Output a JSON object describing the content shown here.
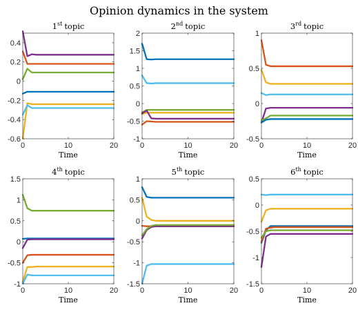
{
  "figure_title": "Opinion dynamics in the system",
  "chart_data": [
    {
      "type": "line",
      "title": "1",
      "title_sup": "st",
      "title_suffix": "topic",
      "xlabel": "Time",
      "ylabel": "",
      "xlim": [
        0,
        20
      ],
      "ylim": [
        -0.6,
        0.5
      ],
      "xticks": [
        "0",
        "10",
        "20"
      ],
      "yticks": [
        "0.4",
        "0.2",
        "0",
        "-0.2",
        "-0.4",
        "-0.6"
      ],
      "x": [
        0,
        1,
        2,
        3,
        20
      ],
      "series": [
        {
          "color": "#7E2F8E",
          "values": [
            0.52,
            0.26,
            0.28,
            0.275,
            0.275
          ]
        },
        {
          "color": "#D95319",
          "values": [
            0.31,
            0.18,
            0.18,
            0.18,
            0.18
          ]
        },
        {
          "color": "#77AC30",
          "values": [
            0.02,
            0.13,
            0.09,
            0.09,
            0.09
          ]
        },
        {
          "color": "#0072BD",
          "values": [
            -0.13,
            -0.11,
            -0.11,
            -0.11,
            -0.11
          ]
        },
        {
          "color": "#EDB120",
          "values": [
            -0.6,
            -0.23,
            -0.24,
            -0.24,
            -0.24
          ]
        },
        {
          "color": "#4DBEEE",
          "values": [
            -0.35,
            -0.25,
            -0.28,
            -0.28,
            -0.28
          ]
        }
      ]
    },
    {
      "type": "line",
      "title": "2",
      "title_sup": "nd",
      "title_suffix": "topic",
      "xlabel": "Time",
      "ylabel": "",
      "xlim": [
        0,
        20
      ],
      "ylim": [
        -1,
        2
      ],
      "xticks": [
        "0",
        "10",
        "20"
      ],
      "yticks": [
        "2",
        "1.5",
        "1",
        "0.5",
        "0",
        "-0.5",
        "-1"
      ],
      "x": [
        0,
        1,
        2,
        3,
        20
      ],
      "series": [
        {
          "color": "#0072BD",
          "values": [
            1.7,
            1.26,
            1.25,
            1.26,
            1.26
          ]
        },
        {
          "color": "#4DBEEE",
          "values": [
            0.8,
            0.58,
            0.57,
            0.58,
            0.58
          ]
        },
        {
          "color": "#77AC30",
          "values": [
            -0.25,
            -0.18,
            -0.18,
            -0.18,
            -0.18
          ]
        },
        {
          "color": "#EDB120",
          "values": [
            -0.3,
            -0.26,
            -0.26,
            -0.26,
            -0.26
          ]
        },
        {
          "color": "#7E2F8E",
          "values": [
            -0.28,
            -0.2,
            -0.42,
            -0.43,
            -0.43
          ]
        },
        {
          "color": "#D95319",
          "values": [
            -0.6,
            -0.5,
            -0.51,
            -0.52,
            -0.52
          ]
        }
      ]
    },
    {
      "type": "line",
      "title": "3",
      "title_sup": "rd",
      "title_suffix": "topic",
      "xlabel": "Time",
      "ylabel": "",
      "xlim": [
        0,
        20
      ],
      "ylim": [
        -0.5,
        1
      ],
      "xticks": [
        "0",
        "10",
        "20"
      ],
      "yticks": [
        "1",
        "0.5",
        "0",
        "-0.5"
      ],
      "x": [
        0,
        1,
        2,
        3,
        20
      ],
      "series": [
        {
          "color": "#D95319",
          "values": [
            0.9,
            0.55,
            0.53,
            0.53,
            0.53
          ]
        },
        {
          "color": "#EDB120",
          "values": [
            0.48,
            0.3,
            0.28,
            0.28,
            0.28
          ]
        },
        {
          "color": "#4DBEEE",
          "values": [
            0.15,
            0.12,
            0.13,
            0.13,
            0.13
          ]
        },
        {
          "color": "#7E2F8E",
          "values": [
            -0.27,
            -0.07,
            -0.06,
            -0.06,
            -0.06
          ]
        },
        {
          "color": "#77AC30",
          "values": [
            -0.24,
            -0.21,
            -0.17,
            -0.17,
            -0.17
          ]
        },
        {
          "color": "#0072BD",
          "values": [
            -0.27,
            -0.23,
            -0.22,
            -0.22,
            -0.22
          ]
        }
      ]
    },
    {
      "type": "line",
      "title": "4",
      "title_sup": "th",
      "title_suffix": "topic",
      "xlabel": "Time",
      "ylabel": "",
      "xlim": [
        0,
        20
      ],
      "ylim": [
        -1,
        1.5
      ],
      "xticks": [
        "0",
        "10",
        "20"
      ],
      "yticks": [
        "1.5",
        "1",
        "0.5",
        "0",
        "-0.5",
        "-1"
      ],
      "x": [
        0,
        1,
        2,
        3,
        20
      ],
      "series": [
        {
          "color": "#77AC30",
          "values": [
            1.12,
            0.8,
            0.74,
            0.74,
            0.74
          ]
        },
        {
          "color": "#0072BD",
          "values": [
            0.07,
            0.08,
            0.08,
            0.08,
            0.08
          ]
        },
        {
          "color": "#7E2F8E",
          "values": [
            -0.15,
            0.05,
            0.06,
            0.06,
            0.06
          ]
        },
        {
          "color": "#D95319",
          "values": [
            -0.5,
            -0.32,
            -0.31,
            -0.31,
            -0.31
          ]
        },
        {
          "color": "#EDB120",
          "values": [
            -0.95,
            -0.6,
            -0.6,
            -0.59,
            -0.59
          ]
        },
        {
          "color": "#4DBEEE",
          "values": [
            -1.0,
            -0.78,
            -0.8,
            -0.8,
            -0.8
          ]
        }
      ]
    },
    {
      "type": "line",
      "title": "5",
      "title_sup": "th",
      "title_suffix": "topic",
      "xlabel": "Time",
      "ylabel": "",
      "xlim": [
        0,
        20
      ],
      "ylim": [
        -1.5,
        1
      ],
      "xticks": [
        "0",
        "10",
        "20"
      ],
      "yticks": [
        "1",
        "0.5",
        "0",
        "-0.5",
        "-1",
        "-1.5"
      ],
      "x": [
        0,
        1,
        2,
        3,
        20
      ],
      "series": [
        {
          "color": "#0072BD",
          "values": [
            0.8,
            0.57,
            0.55,
            0.55,
            0.55
          ]
        },
        {
          "color": "#EDB120",
          "values": [
            0.55,
            0.1,
            0.02,
            0.0,
            0.0
          ]
        },
        {
          "color": "#D95319",
          "values": [
            -0.12,
            -0.13,
            -0.13,
            -0.13,
            -0.13
          ]
        },
        {
          "color": "#7E2F8E",
          "values": [
            -0.42,
            -0.22,
            -0.15,
            -0.13,
            -0.13
          ]
        },
        {
          "color": "#77AC30",
          "values": [
            -0.35,
            -0.2,
            -0.12,
            -0.1,
            -0.1
          ]
        },
        {
          "color": "#4DBEEE",
          "values": [
            -1.5,
            -1.07,
            -1.03,
            -1.03,
            -1.03
          ]
        }
      ]
    },
    {
      "type": "line",
      "title": "6",
      "title_sup": "th",
      "title_suffix": "topic",
      "xlabel": "Time",
      "ylabel": "",
      "xlim": [
        0,
        20
      ],
      "ylim": [
        -1.5,
        0.5
      ],
      "xticks": [
        "0",
        "10",
        "20"
      ],
      "yticks": [
        "0.5",
        "0",
        "-0.5",
        "-1",
        "-1.5"
      ],
      "x": [
        0,
        1,
        2,
        3,
        20
      ],
      "series": [
        {
          "color": "#4DBEEE",
          "values": [
            0.2,
            0.19,
            0.2,
            0.2,
            0.2
          ]
        },
        {
          "color": "#EDB120",
          "values": [
            -0.32,
            -0.1,
            -0.07,
            -0.07,
            -0.07
          ]
        },
        {
          "color": "#0072BD",
          "values": [
            -0.72,
            -0.48,
            -0.4,
            -0.4,
            -0.4
          ]
        },
        {
          "color": "#D95319",
          "values": [
            -0.7,
            -0.45,
            -0.43,
            -0.42,
            -0.42
          ]
        },
        {
          "color": "#77AC30",
          "values": [
            -0.62,
            -0.5,
            -0.48,
            -0.48,
            -0.48
          ]
        },
        {
          "color": "#7E2F8E",
          "values": [
            -1.18,
            -0.6,
            -0.55,
            -0.55,
            -0.55
          ]
        }
      ]
    }
  ]
}
